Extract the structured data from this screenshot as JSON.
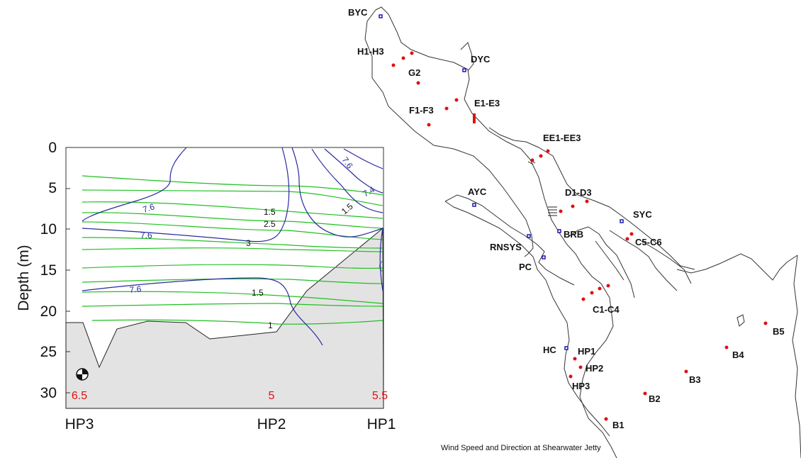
{
  "section": {
    "y_axis_label": "Depth (m)",
    "y_ticks": [
      "0",
      "5",
      "10",
      "15",
      "20",
      "25",
      "30"
    ],
    "x_ticks": [
      "HP3",
      "HP2",
      "HP1"
    ],
    "bottom_values": [
      "6.5",
      "5",
      "5.5"
    ],
    "oxygen_contour_labels": [
      "7.6",
      "7.6",
      "7.6",
      "7.6",
      "7.4"
    ],
    "salinity_contour_labels": [
      "1.5",
      "2.5",
      "3",
      "1.5",
      "1",
      "1.5"
    ],
    "colors": {
      "oxygen": "#2a2aa0",
      "salinity": "#21c021",
      "seabed": "#e3e3e3",
      "values": "#e01010"
    }
  },
  "map": {
    "stations": [
      {
        "id": "BYC",
        "kind": "club"
      },
      {
        "id": "H1-H3",
        "kind": "sample"
      },
      {
        "id": "DYC",
        "kind": "club"
      },
      {
        "id": "G2",
        "kind": "sample"
      },
      {
        "id": "F1-F3",
        "kind": "sample"
      },
      {
        "id": "E1-E3",
        "kind": "sample"
      },
      {
        "id": "EE1-EE3",
        "kind": "sample"
      },
      {
        "id": "AYC",
        "kind": "club"
      },
      {
        "id": "D1-D3",
        "kind": "sample"
      },
      {
        "id": "SYC",
        "kind": "club"
      },
      {
        "id": "BRB",
        "kind": "club"
      },
      {
        "id": "RNSYS",
        "kind": "club"
      },
      {
        "id": "C5-C6",
        "kind": "sample"
      },
      {
        "id": "PC",
        "kind": "club"
      },
      {
        "id": "C1-C4",
        "kind": "sample"
      },
      {
        "id": "B5",
        "kind": "sample"
      },
      {
        "id": "B4",
        "kind": "sample"
      },
      {
        "id": "HC",
        "kind": "club"
      },
      {
        "id": "HP1",
        "kind": "sample"
      },
      {
        "id": "HP2",
        "kind": "sample"
      },
      {
        "id": "B3",
        "kind": "sample"
      },
      {
        "id": "HP3",
        "kind": "sample"
      },
      {
        "id": "B2",
        "kind": "sample"
      },
      {
        "id": "B1",
        "kind": "sample"
      }
    ],
    "wind_caption": "Wind Speed and Direction at Shearwater Jetty",
    "colors": {
      "sample": "#e01010",
      "club": "#1a1ab0"
    }
  }
}
